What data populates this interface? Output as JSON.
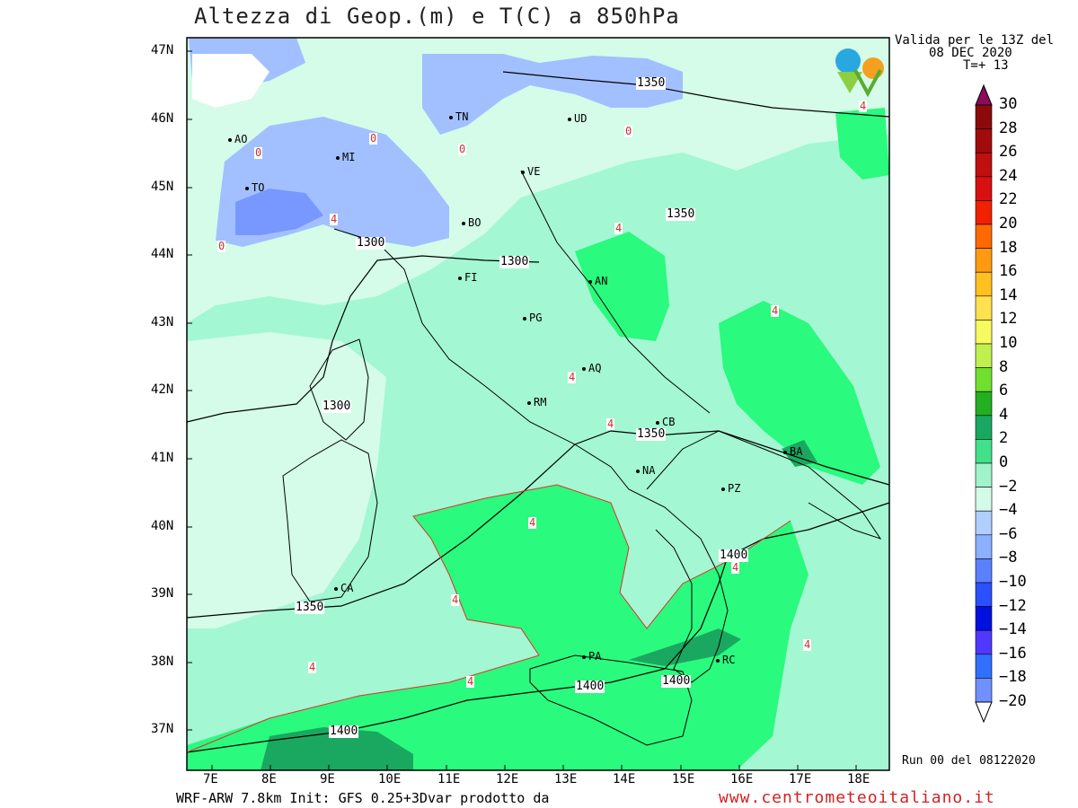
{
  "title": "Altezza di Geop.(m) e T(C) a 850hPa",
  "valid": {
    "line1": "Valida per le 13Z del",
    "line2": "08 DEC 2020",
    "line3": "T=+ 13"
  },
  "run_info": "Run 00 del 08122020",
  "footer": {
    "model": "WRF-ARW 7.8km Init: GFS 0.25+3Dvar prodotto da",
    "site": "www.centrometeoitaliano.it"
  },
  "axes": {
    "lat_labels": [
      "47N",
      "46N",
      "45N",
      "44N",
      "43N",
      "42N",
      "41N",
      "40N",
      "39N",
      "38N",
      "37N"
    ],
    "lon_labels": [
      "7E",
      "8E",
      "9E",
      "10E",
      "11E",
      "12E",
      "13E",
      "14E",
      "15E",
      "16E",
      "17E",
      "18E"
    ]
  },
  "colorbar": {
    "labels": [
      "30",
      "28",
      "26",
      "24",
      "22",
      "20",
      "18",
      "16",
      "14",
      "12",
      "10",
      "8",
      "6",
      "4",
      "2",
      "0",
      "−2",
      "−4",
      "−6",
      "−8",
      "−10",
      "−12",
      "−14",
      "−16",
      "−18",
      "−20"
    ],
    "colors": [
      "#8b0a0a",
      "#a00c0c",
      "#c00f0f",
      "#d81010",
      "#f02000",
      "#ff6a00",
      "#ff9a10",
      "#ffc020",
      "#ffe050",
      "#f8f860",
      "#c0f050",
      "#70e030",
      "#22b020",
      "#1aa860",
      "#42e08a",
      "#a0f4cc",
      "#d4fbe8",
      "#b0cfff",
      "#8ab0ff",
      "#5a80ff",
      "#2a50ff",
      "#0010e0",
      "#5038ff",
      "#3070ff",
      "#7090ff",
      "#a0a8ff",
      "#aaaaaa"
    ]
  },
  "cities": [
    {
      "name": "AO"
    },
    {
      "name": "MI"
    },
    {
      "name": "TO"
    },
    {
      "name": "TN"
    },
    {
      "name": "UD"
    },
    {
      "name": "VE"
    },
    {
      "name": "BO"
    },
    {
      "name": "FI"
    },
    {
      "name": "AN"
    },
    {
      "name": "PG"
    },
    {
      "name": "AQ"
    },
    {
      "name": "RM"
    },
    {
      "name": "CB"
    },
    {
      "name": "NA"
    },
    {
      "name": "BA"
    },
    {
      "name": "PZ"
    },
    {
      "name": "CA"
    },
    {
      "name": "PA"
    },
    {
      "name": "RC"
    }
  ],
  "geopotential_labels": [
    "1350",
    "1350",
    "1300",
    "1300",
    "1300",
    "1350",
    "1400",
    "1350",
    "1400",
    "1400",
    "1400"
  ],
  "temperature_labels": [
    "0",
    "0",
    "0",
    "0",
    "0",
    "4",
    "4",
    "4",
    "4",
    "4",
    "4",
    "4",
    "4",
    "4",
    "4",
    "4",
    "4"
  ],
  "colors": {
    "green_4_6": "#2afa7e",
    "green_2_4": "#a3f7d2",
    "light_0_2": "#d4fce8",
    "blue_m2_0": "#a2c0ff",
    "blue_m4_m2": "#7898ff",
    "contour_red": "#e03030"
  }
}
